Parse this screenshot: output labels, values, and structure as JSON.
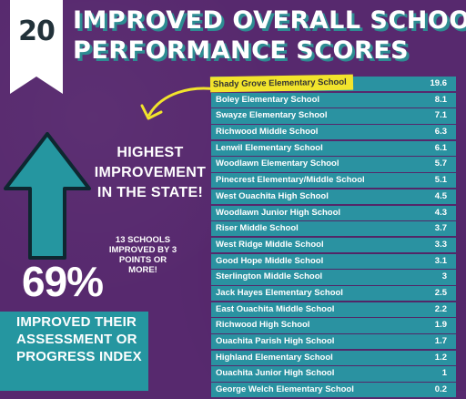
{
  "ribbon": {
    "number": "20"
  },
  "title": {
    "line1": "IMPROVED OVERALL SCHOOL",
    "line2": "PERFORMANCE SCORES"
  },
  "callout": {
    "line1": "HIGHEST",
    "line2": "IMPROVEMENT",
    "line3": "IN THE STATE!"
  },
  "note": {
    "line1": "13 SCHOOLS",
    "line2": "IMPROVED BY 3",
    "line3": "POINTS OR",
    "line4": "MORE!"
  },
  "stat": {
    "percent": "69%",
    "line1": "IMPROVED THEIR",
    "line2": "ASSESSMENT OR",
    "line3": "PROGRESS INDEX"
  },
  "colors": {
    "background": "#57296e",
    "teal": "#2596a0",
    "row": "#2a92a1",
    "highlight": "#f2e42c"
  },
  "schools": [
    {
      "name": "Shady Grove Elementary School",
      "score": "19.6"
    },
    {
      "name": "Boley Elementary School",
      "score": "8.1"
    },
    {
      "name": "Swayze Elementary School",
      "score": "7.1"
    },
    {
      "name": "Richwood Middle School",
      "score": "6.3"
    },
    {
      "name": "Lenwil Elementary School",
      "score": "6.1"
    },
    {
      "name": "Woodlawn Elementary School",
      "score": "5.7"
    },
    {
      "name": " Pinecrest Elementary/Middle School",
      "score": "5.1"
    },
    {
      "name": "West Ouachita High School",
      "score": "4.5"
    },
    {
      "name": "Woodlawn Junior High School",
      "score": "4.3"
    },
    {
      "name": "Riser Middle School",
      "score": "3.7"
    },
    {
      "name": " West Ridge Middle School",
      "score": "3.3"
    },
    {
      "name": "Good Hope Middle School",
      "score": "3.1"
    },
    {
      "name": "Sterlington Middle School",
      "score": "3"
    },
    {
      "name": "Jack Hayes Elementary School",
      "score": "2.5"
    },
    {
      "name": "  East Ouachita Middle School",
      "score": "2.2"
    },
    {
      "name": " Richwood High School",
      "score": "1.9"
    },
    {
      "name": "   Ouachita Parish High School",
      "score": "1.7"
    },
    {
      "name": "Highland Elementary School",
      "score": "1.2"
    },
    {
      "name": " Ouachita Junior High School",
      "score": "1"
    },
    {
      "name": "    George Welch Elementary School",
      "score": "0.2"
    }
  ]
}
